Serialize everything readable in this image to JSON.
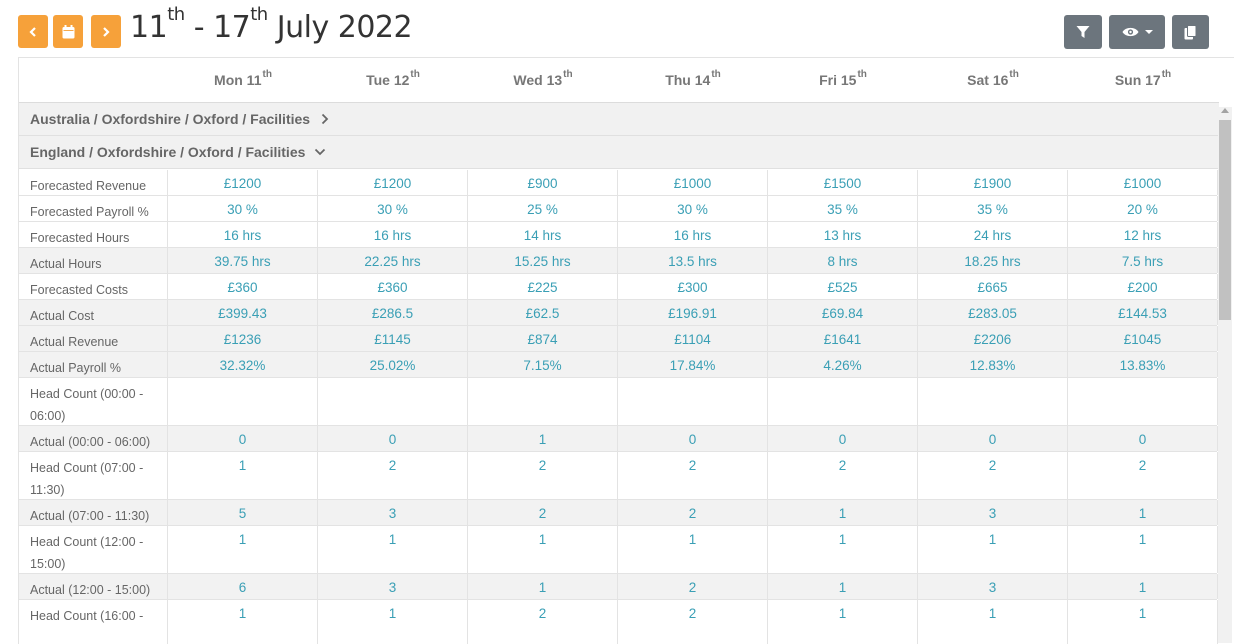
{
  "header": {
    "title": {
      "start_day": "11",
      "start_sup": "th",
      "sep": " - ",
      "end_day": "17",
      "end_sup": "th",
      "rest": " July 2022"
    },
    "prev_icon": "chevron-left-icon",
    "calendar_icon": "calendar-icon",
    "next_icon": "chevron-right-icon",
    "accent_color": "#f6a13a",
    "tools": [
      "filter-icon",
      "eye-icon",
      "copy-icon"
    ],
    "tools_color": "#6c757d"
  },
  "days": [
    {
      "name": "Mon 11",
      "sup": "th"
    },
    {
      "name": "Tue 12",
      "sup": "th"
    },
    {
      "name": "Wed 13",
      "sup": "th"
    },
    {
      "name": "Thu 14",
      "sup": "th"
    },
    {
      "name": "Fri 15",
      "sup": "th"
    },
    {
      "name": "Sat 16",
      "sup": "th"
    },
    {
      "name": "Sun 17",
      "sup": "th"
    }
  ],
  "groups": [
    {
      "label": "Australia / Oxfordshire / Oxford / Facilities",
      "expanded": false
    },
    {
      "label": "England / Oxfordshire / Oxford / Facilities",
      "expanded": true
    }
  ],
  "rows": [
    {
      "label": "Forecasted Revenue",
      "values": [
        "£1200",
        "£1200",
        "£900",
        "£1000",
        "£1500",
        "£1900",
        "£1000"
      ]
    },
    {
      "label": "Forecasted Payroll %",
      "values": [
        "30 %",
        "30 %",
        "25 %",
        "30 %",
        "35 %",
        "35 %",
        "20 %"
      ]
    },
    {
      "label": "Forecasted Hours",
      "values": [
        "16 hrs",
        "16 hrs",
        "14 hrs",
        "16 hrs",
        "13 hrs",
        "24 hrs",
        "12 hrs"
      ]
    },
    {
      "label": "Actual Hours",
      "values": [
        "39.75 hrs",
        "22.25 hrs",
        "15.25 hrs",
        "13.5 hrs",
        "8 hrs",
        "18.25 hrs",
        "7.5 hrs"
      ]
    },
    {
      "label": "Forecasted Costs",
      "values": [
        "£360",
        "£360",
        "£225",
        "£300",
        "£525",
        "£665",
        "£200"
      ]
    },
    {
      "label": "Actual Cost",
      "values": [
        "£399.43",
        "£286.5",
        "£62.5",
        "£196.91",
        "£69.84",
        "£283.05",
        "£144.53"
      ]
    },
    {
      "label": "Actual Revenue",
      "values": [
        "£1236",
        "£1145",
        "£874",
        "£1104",
        "£1641",
        "£2206",
        "£1045"
      ]
    },
    {
      "label": "Actual Payroll %",
      "values": [
        "32.32%",
        "25.02%",
        "7.15%",
        "17.84%",
        "4.26%",
        "12.83%",
        "13.83%"
      ]
    },
    {
      "label": "Head Count (00:00 - 06:00)",
      "values": [
        "",
        "",
        "",
        "",
        "",
        "",
        ""
      ]
    },
    {
      "label": "Actual (00:00 - 06:00)",
      "values": [
        "0",
        "0",
        "1",
        "0",
        "0",
        "0",
        "0"
      ]
    },
    {
      "label": "Head Count (07:00 - 11:30)",
      "values": [
        "1",
        "2",
        "2",
        "2",
        "2",
        "2",
        "2"
      ]
    },
    {
      "label": "Actual (07:00 - 11:30)",
      "values": [
        "5",
        "3",
        "2",
        "2",
        "1",
        "3",
        "1"
      ]
    },
    {
      "label": "Head Count (12:00 - 15:00)",
      "values": [
        "1",
        "1",
        "1",
        "1",
        "1",
        "1",
        "1"
      ]
    },
    {
      "label": "Actual (12:00 - 15:00)",
      "values": [
        "6",
        "3",
        "1",
        "2",
        "1",
        "3",
        "1"
      ]
    },
    {
      "label": "Head Count (16:00 - ",
      "values": [
        "1",
        "1",
        "2",
        "2",
        "1",
        "1",
        "1"
      ]
    }
  ]
}
